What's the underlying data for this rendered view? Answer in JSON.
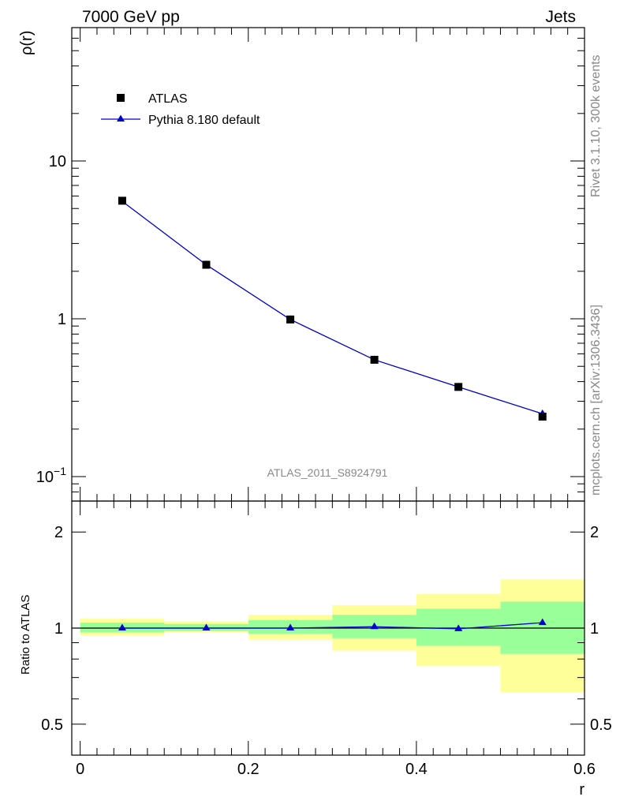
{
  "header": {
    "left": "7000 GeV pp",
    "right": "Jets"
  },
  "side_texts": {
    "rivet": "Rivet 3.1.10,  300k events",
    "mcplots": "mcplots.cern.ch [arXiv:1306.3436]"
  },
  "colors": {
    "mc": "#0000cc",
    "data": "#000000",
    "band_inner": "#99ff99",
    "band_outer": "#ffff99",
    "watermark": "#aaaaaa"
  },
  "chart_data": [
    {
      "type": "line",
      "title": "",
      "ylabel": "ρ(r)",
      "xlabel": "r",
      "yscale": "log",
      "ylim": [
        0.07,
        70
      ],
      "xlim": [
        -0.01,
        0.6
      ],
      "yticks": [
        {
          "value": 0.1,
          "base": "10",
          "exp": "−1"
        },
        {
          "value": 1,
          "label": "1"
        },
        {
          "value": 10,
          "label": "10"
        }
      ],
      "watermark": "ATLAS_2011_S8924791",
      "legend": {
        "placement": "top-left",
        "data_label": "ATLAS",
        "mc_label": "Pythia 8.180 default"
      },
      "x": [
        0.05,
        0.15,
        0.25,
        0.35,
        0.45,
        0.55
      ],
      "series": [
        {
          "name": "ATLAS",
          "marker": "square",
          "values": [
            5.6,
            2.2,
            0.99,
            0.55,
            0.37,
            0.24
          ]
        },
        {
          "name": "Pythia 8.180 default",
          "marker": "triangle",
          "values": [
            5.55,
            2.2,
            0.99,
            0.55,
            0.37,
            0.25
          ]
        }
      ]
    },
    {
      "type": "line",
      "ylabel": "Ratio to ATLAS",
      "xlabel": "r",
      "yscale": "log",
      "ylim": [
        0.4,
        2.5
      ],
      "xlim": [
        -0.01,
        0.6
      ],
      "yticks": [
        {
          "value": 0.5,
          "label": "0.5"
        },
        {
          "value": 1,
          "label": "1"
        },
        {
          "value": 2,
          "label": "2"
        }
      ],
      "xticks": [
        {
          "value": 0,
          "label": "0"
        },
        {
          "value": 0.2,
          "label": "0.2"
        },
        {
          "value": 0.4,
          "label": "0.4"
        },
        {
          "value": 0.6,
          "label": "0.6"
        }
      ],
      "bins": [
        [
          0.0,
          0.1
        ],
        [
          0.1,
          0.2
        ],
        [
          0.2,
          0.3
        ],
        [
          0.3,
          0.4
        ],
        [
          0.4,
          0.5
        ],
        [
          0.5,
          0.6
        ]
      ],
      "band_inner": [
        [
          0.97,
          1.04
        ],
        [
          0.98,
          1.03
        ],
        [
          0.96,
          1.06
        ],
        [
          0.93,
          1.1
        ],
        [
          0.88,
          1.15
        ],
        [
          0.83,
          1.21
        ]
      ],
      "band_outer": [
        [
          0.95,
          1.07
        ],
        [
          0.97,
          1.05
        ],
        [
          0.92,
          1.1
        ],
        [
          0.85,
          1.18
        ],
        [
          0.76,
          1.28
        ],
        [
          0.63,
          1.42
        ]
      ],
      "x": [
        0.05,
        0.15,
        0.25,
        0.35,
        0.45,
        0.55
      ],
      "series": [
        {
          "name": "Pythia 8.180 default",
          "values": [
            1.0,
            1.0,
            1.0,
            1.01,
            0.995,
            1.04
          ]
        }
      ]
    }
  ]
}
